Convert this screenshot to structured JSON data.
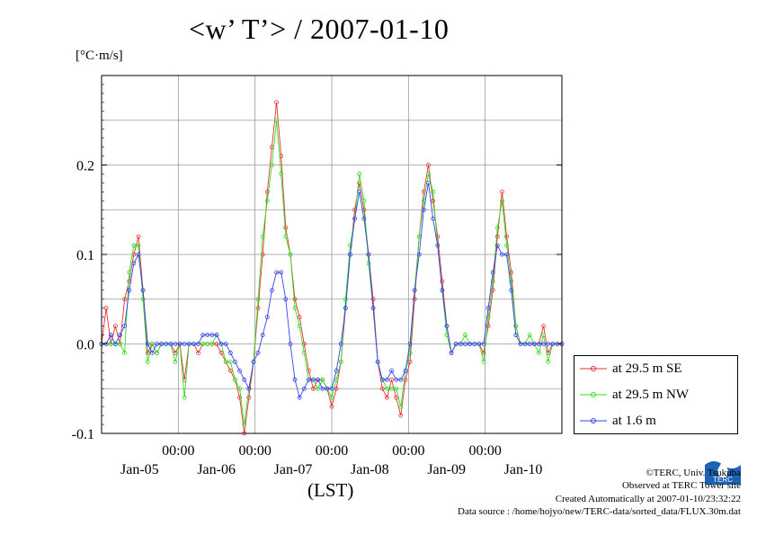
{
  "title": "<w’ T’> / 2007-01-10",
  "unit_label": "[°C·m/s]",
  "footer": {
    "copyright": "©TERC, Univ. Tsukuba",
    "site": "Observed at TERC Tower site",
    "created": "Created Automatically at 2007-01-10/23:32:22",
    "source": "Data source : /home/hojyo/new/TERC-data/sorted_data/FLUX.30m.dat"
  },
  "logo_text": "TERC",
  "chart_data": {
    "type": "line",
    "title": "<w’ T’> / 2007-01-10",
    "xlabel": "(LST)",
    "ylabel": "[°C·m/s]",
    "ylim": [
      -0.1,
      0.3
    ],
    "yticks": [
      {
        "value": -0.1,
        "label": "-0.1"
      },
      {
        "value": 0.0,
        "label": "0.0"
      },
      {
        "value": 0.1,
        "label": "0.1"
      },
      {
        "value": 0.2,
        "label": "0.2"
      }
    ],
    "xlim": [
      0,
      6
    ],
    "x_unit": "days from 2007-01-05 00:00 LST",
    "xticks": [
      {
        "value": 1,
        "time": "00:00",
        "date": "Jan-05"
      },
      {
        "value": 2,
        "time": "00:00",
        "date": "Jan-06"
      },
      {
        "value": 3,
        "time": "00:00",
        "date": "Jan-07"
      },
      {
        "value": 4,
        "time": "00:00",
        "date": "Jan-08"
      },
      {
        "value": 5,
        "time": "00:00",
        "date": "Jan-09"
      },
      {
        "value": 6,
        "time": "",
        "date": "Jan-10"
      }
    ],
    "grid": true,
    "legend_position": "bottom-right outside",
    "series": [
      {
        "name": "at 29.5 m SE",
        "color": "#e8312f",
        "values": [
          [
            0.0,
            0.0
          ],
          [
            0.06,
            0.04
          ],
          [
            0.12,
            0.0
          ],
          [
            0.18,
            0.02
          ],
          [
            0.24,
            0.0
          ],
          [
            0.3,
            0.05
          ],
          [
            0.36,
            0.07
          ],
          [
            0.42,
            0.1
          ],
          [
            0.48,
            0.12
          ],
          [
            0.54,
            0.06
          ],
          [
            0.6,
            -0.01
          ],
          [
            0.66,
            0.0
          ],
          [
            0.72,
            -0.01
          ],
          [
            0.78,
            0.0
          ],
          [
            0.84,
            0.0
          ],
          [
            0.9,
            0.0
          ],
          [
            0.96,
            -0.01
          ],
          [
            1.02,
            0.0
          ],
          [
            1.08,
            -0.04
          ],
          [
            1.14,
            0.0
          ],
          [
            1.2,
            0.0
          ],
          [
            1.26,
            -0.01
          ],
          [
            1.32,
            0.0
          ],
          [
            1.38,
            0.0
          ],
          [
            1.44,
            0.0
          ],
          [
            1.5,
            0.0
          ],
          [
            1.56,
            -0.01
          ],
          [
            1.62,
            -0.02
          ],
          [
            1.68,
            -0.03
          ],
          [
            1.74,
            -0.04
          ],
          [
            1.8,
            -0.06
          ],
          [
            1.86,
            -0.1
          ],
          [
            1.92,
            -0.06
          ],
          [
            1.98,
            -0.02
          ],
          [
            2.04,
            0.04
          ],
          [
            2.1,
            0.1
          ],
          [
            2.16,
            0.17
          ],
          [
            2.22,
            0.22
          ],
          [
            2.28,
            0.27
          ],
          [
            2.34,
            0.21
          ],
          [
            2.4,
            0.13
          ],
          [
            2.46,
            0.1
          ],
          [
            2.52,
            0.05
          ],
          [
            2.58,
            0.03
          ],
          [
            2.64,
            0.0
          ],
          [
            2.7,
            -0.03
          ],
          [
            2.76,
            -0.05
          ],
          [
            2.82,
            -0.04
          ],
          [
            2.88,
            -0.04
          ],
          [
            2.94,
            -0.05
          ],
          [
            3.0,
            -0.07
          ],
          [
            3.06,
            -0.05
          ],
          [
            3.12,
            -0.02
          ],
          [
            3.18,
            0.04
          ],
          [
            3.24,
            0.1
          ],
          [
            3.3,
            0.15
          ],
          [
            3.36,
            0.18
          ],
          [
            3.42,
            0.15
          ],
          [
            3.48,
            0.1
          ],
          [
            3.54,
            0.05
          ],
          [
            3.6,
            -0.02
          ],
          [
            3.66,
            -0.05
          ],
          [
            3.72,
            -0.06
          ],
          [
            3.78,
            -0.04
          ],
          [
            3.84,
            -0.06
          ],
          [
            3.9,
            -0.08
          ],
          [
            3.96,
            -0.04
          ],
          [
            4.02,
            -0.02
          ],
          [
            4.08,
            0.05
          ],
          [
            4.14,
            0.12
          ],
          [
            4.2,
            0.17
          ],
          [
            4.26,
            0.2
          ],
          [
            4.32,
            0.16
          ],
          [
            4.38,
            0.12
          ],
          [
            4.44,
            0.07
          ],
          [
            4.5,
            0.02
          ],
          [
            4.56,
            -0.01
          ],
          [
            4.62,
            0.0
          ],
          [
            4.68,
            0.0
          ],
          [
            4.74,
            0.0
          ],
          [
            4.8,
            0.0
          ],
          [
            4.86,
            0.0
          ],
          [
            4.92,
            0.0
          ],
          [
            4.98,
            -0.01
          ],
          [
            5.04,
            0.02
          ],
          [
            5.1,
            0.06
          ],
          [
            5.16,
            0.12
          ],
          [
            5.22,
            0.17
          ],
          [
            5.28,
            0.12
          ],
          [
            5.34,
            0.08
          ],
          [
            5.4,
            0.02
          ],
          [
            5.46,
            0.0
          ],
          [
            5.52,
            0.0
          ],
          [
            5.58,
            0.0
          ],
          [
            5.64,
            0.0
          ],
          [
            5.7,
            0.0
          ],
          [
            5.76,
            0.02
          ],
          [
            5.82,
            -0.01
          ],
          [
            5.88,
            0.0
          ],
          [
            5.94,
            0.0
          ],
          [
            6.0,
            0.0
          ]
        ]
      },
      {
        "name": "at 29.5 m NW",
        "color": "#33dd22",
        "values": [
          [
            0.0,
            0.0
          ],
          [
            0.06,
            0.0
          ],
          [
            0.12,
            0.0
          ],
          [
            0.18,
            0.0
          ],
          [
            0.24,
            0.0
          ],
          [
            0.3,
            -0.01
          ],
          [
            0.36,
            0.08
          ],
          [
            0.42,
            0.11
          ],
          [
            0.48,
            0.11
          ],
          [
            0.54,
            0.05
          ],
          [
            0.6,
            -0.02
          ],
          [
            0.66,
            0.0
          ],
          [
            0.72,
            -0.01
          ],
          [
            0.78,
            0.0
          ],
          [
            0.84,
            0.0
          ],
          [
            0.9,
            0.0
          ],
          [
            0.96,
            -0.02
          ],
          [
            1.02,
            0.0
          ],
          [
            1.08,
            -0.06
          ],
          [
            1.14,
            0.0
          ],
          [
            1.2,
            0.0
          ],
          [
            1.26,
            0.0
          ],
          [
            1.32,
            0.0
          ],
          [
            1.38,
            0.0
          ],
          [
            1.44,
            0.0
          ],
          [
            1.5,
            0.01
          ],
          [
            1.56,
            0.0
          ],
          [
            1.62,
            -0.02
          ],
          [
            1.68,
            -0.02
          ],
          [
            1.74,
            -0.04
          ],
          [
            1.8,
            -0.05
          ],
          [
            1.86,
            -0.09
          ],
          [
            1.92,
            -0.05
          ],
          [
            1.98,
            -0.02
          ],
          [
            2.04,
            0.05
          ],
          [
            2.1,
            0.12
          ],
          [
            2.16,
            0.16
          ],
          [
            2.22,
            0.2
          ],
          [
            2.28,
            0.25
          ],
          [
            2.34,
            0.19
          ],
          [
            2.4,
            0.12
          ],
          [
            2.46,
            0.1
          ],
          [
            2.52,
            0.04
          ],
          [
            2.58,
            0.02
          ],
          [
            2.64,
            -0.01
          ],
          [
            2.7,
            -0.04
          ],
          [
            2.76,
            -0.04
          ],
          [
            2.82,
            -0.05
          ],
          [
            2.88,
            -0.04
          ],
          [
            2.94,
            -0.05
          ],
          [
            3.0,
            -0.06
          ],
          [
            3.06,
            -0.04
          ],
          [
            3.12,
            -0.02
          ],
          [
            3.18,
            0.05
          ],
          [
            3.24,
            0.11
          ],
          [
            3.3,
            0.14
          ],
          [
            3.36,
            0.19
          ],
          [
            3.42,
            0.16
          ],
          [
            3.48,
            0.09
          ],
          [
            3.54,
            0.04
          ],
          [
            3.6,
            -0.02
          ],
          [
            3.66,
            -0.04
          ],
          [
            3.72,
            -0.05
          ],
          [
            3.78,
            -0.05
          ],
          [
            3.84,
            -0.05
          ],
          [
            3.9,
            -0.07
          ],
          [
            3.96,
            -0.03
          ],
          [
            4.02,
            -0.01
          ],
          [
            4.08,
            0.06
          ],
          [
            4.14,
            0.12
          ],
          [
            4.2,
            0.16
          ],
          [
            4.26,
            0.19
          ],
          [
            4.32,
            0.17
          ],
          [
            4.38,
            0.11
          ],
          [
            4.44,
            0.06
          ],
          [
            4.5,
            0.01
          ],
          [
            4.56,
            -0.01
          ],
          [
            4.62,
            0.0
          ],
          [
            4.68,
            0.0
          ],
          [
            4.74,
            0.01
          ],
          [
            4.8,
            0.0
          ],
          [
            4.86,
            0.0
          ],
          [
            4.92,
            0.0
          ],
          [
            4.98,
            -0.02
          ],
          [
            5.04,
            0.03
          ],
          [
            5.1,
            0.07
          ],
          [
            5.16,
            0.13
          ],
          [
            5.22,
            0.16
          ],
          [
            5.28,
            0.11
          ],
          [
            5.34,
            0.07
          ],
          [
            5.4,
            0.02
          ],
          [
            5.46,
            0.0
          ],
          [
            5.52,
            0.0
          ],
          [
            5.58,
            0.01
          ],
          [
            5.64,
            0.0
          ],
          [
            5.7,
            -0.01
          ],
          [
            5.76,
            0.01
          ],
          [
            5.82,
            -0.02
          ],
          [
            5.88,
            0.0
          ],
          [
            5.94,
            0.0
          ],
          [
            6.0,
            0.0
          ]
        ]
      },
      {
        "name": "at 1.6 m",
        "color": "#3344ee",
        "values": [
          [
            0.0,
            0.0
          ],
          [
            0.06,
            0.0
          ],
          [
            0.12,
            0.01
          ],
          [
            0.18,
            0.0
          ],
          [
            0.24,
            0.01
          ],
          [
            0.3,
            0.02
          ],
          [
            0.36,
            0.06
          ],
          [
            0.42,
            0.09
          ],
          [
            0.48,
            0.1
          ],
          [
            0.54,
            0.06
          ],
          [
            0.6,
            0.0
          ],
          [
            0.66,
            -0.01
          ],
          [
            0.72,
            0.0
          ],
          [
            0.78,
            0.0
          ],
          [
            0.84,
            0.0
          ],
          [
            0.9,
            0.0
          ],
          [
            0.96,
            0.0
          ],
          [
            1.02,
            0.0
          ],
          [
            1.08,
            0.0
          ],
          [
            1.14,
            0.0
          ],
          [
            1.2,
            0.0
          ],
          [
            1.26,
            0.0
          ],
          [
            1.32,
            0.01
          ],
          [
            1.38,
            0.01
          ],
          [
            1.44,
            0.01
          ],
          [
            1.5,
            0.01
          ],
          [
            1.56,
            0.0
          ],
          [
            1.62,
            0.0
          ],
          [
            1.68,
            -0.01
          ],
          [
            1.74,
            -0.02
          ],
          [
            1.8,
            -0.03
          ],
          [
            1.86,
            -0.04
          ],
          [
            1.92,
            -0.05
          ],
          [
            1.98,
            -0.02
          ],
          [
            2.04,
            -0.01
          ],
          [
            2.1,
            0.01
          ],
          [
            2.16,
            0.03
          ],
          [
            2.22,
            0.06
          ],
          [
            2.28,
            0.08
          ],
          [
            2.34,
            0.08
          ],
          [
            2.4,
            0.05
          ],
          [
            2.46,
            0.0
          ],
          [
            2.52,
            -0.04
          ],
          [
            2.58,
            -0.06
          ],
          [
            2.64,
            -0.05
          ],
          [
            2.7,
            -0.04
          ],
          [
            2.76,
            -0.04
          ],
          [
            2.82,
            -0.04
          ],
          [
            2.88,
            -0.05
          ],
          [
            2.94,
            -0.05
          ],
          [
            3.0,
            -0.05
          ],
          [
            3.06,
            -0.03
          ],
          [
            3.12,
            0.0
          ],
          [
            3.18,
            0.04
          ],
          [
            3.24,
            0.1
          ],
          [
            3.3,
            0.14
          ],
          [
            3.36,
            0.17
          ],
          [
            3.42,
            0.14
          ],
          [
            3.48,
            0.1
          ],
          [
            3.54,
            0.04
          ],
          [
            3.6,
            -0.02
          ],
          [
            3.66,
            -0.04
          ],
          [
            3.72,
            -0.04
          ],
          [
            3.78,
            -0.03
          ],
          [
            3.84,
            -0.04
          ],
          [
            3.9,
            -0.04
          ],
          [
            3.96,
            -0.03
          ],
          [
            4.02,
            0.0
          ],
          [
            4.08,
            0.06
          ],
          [
            4.14,
            0.1
          ],
          [
            4.2,
            0.15
          ],
          [
            4.26,
            0.18
          ],
          [
            4.32,
            0.14
          ],
          [
            4.38,
            0.11
          ],
          [
            4.44,
            0.06
          ],
          [
            4.5,
            0.02
          ],
          [
            4.56,
            -0.01
          ],
          [
            4.62,
            0.0
          ],
          [
            4.68,
            0.0
          ],
          [
            4.74,
            0.0
          ],
          [
            4.8,
            0.0
          ],
          [
            4.86,
            0.0
          ],
          [
            4.92,
            0.0
          ],
          [
            4.98,
            0.0
          ],
          [
            5.04,
            0.04
          ],
          [
            5.1,
            0.08
          ],
          [
            5.16,
            0.11
          ],
          [
            5.22,
            0.1
          ],
          [
            5.28,
            0.1
          ],
          [
            5.34,
            0.06
          ],
          [
            5.4,
            0.01
          ],
          [
            5.46,
            0.0
          ],
          [
            5.52,
            0.0
          ],
          [
            5.58,
            0.0
          ],
          [
            5.64,
            0.0
          ],
          [
            5.7,
            0.0
          ],
          [
            5.76,
            0.0
          ],
          [
            5.82,
            0.0
          ],
          [
            5.88,
            0.0
          ],
          [
            5.94,
            0.0
          ],
          [
            6.0,
            0.0
          ]
        ]
      }
    ]
  }
}
